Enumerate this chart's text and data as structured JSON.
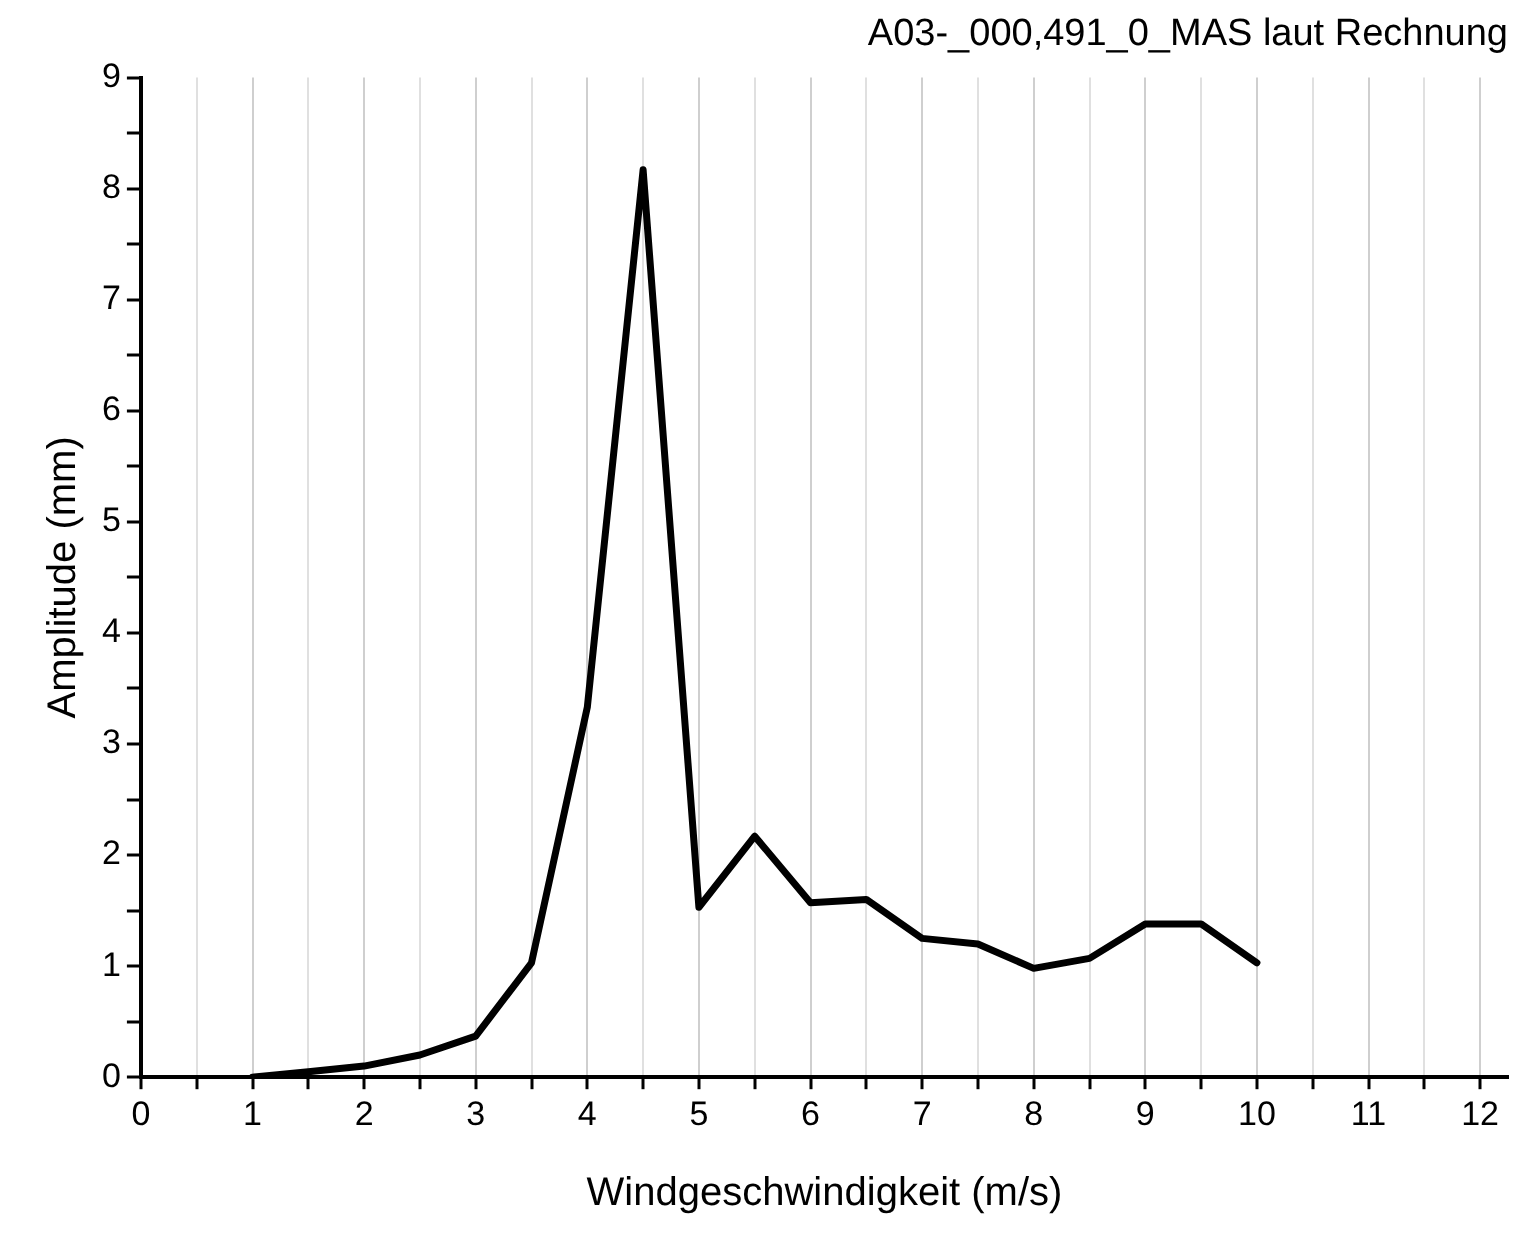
{
  "chart_data": {
    "type": "line",
    "title": "A03-_000,491_0_MAS laut Rechnung",
    "xlabel": "Windgeschwindigkeit (m/s)",
    "ylabel": "Amplitude (mm)",
    "x": [
      1,
      1.5,
      2,
      2.5,
      3,
      3.5,
      4,
      4.5,
      5,
      5.5,
      6,
      6.5,
      7,
      7.5,
      8,
      8.5,
      9,
      9.5,
      10
    ],
    "series": [
      {
        "color": "#000000",
        "values": [
          0,
          0.05,
          0.1,
          0.2,
          0.37,
          1.03,
          3.33,
          8.17,
          1.53,
          2.17,
          1.57,
          1.6,
          1.25,
          1.2,
          0.98,
          1.07,
          1.38,
          1.38,
          1.03
        ]
      }
    ],
    "xlim": [
      0,
      12.25
    ],
    "xticks": [
      0,
      {
        "value": 0.5,
        "label": null
      },
      1,
      {
        "value": 1.5,
        "label": null
      },
      2,
      {
        "value": 2.5,
        "label": null
      },
      3,
      {
        "value": 3.5,
        "label": null
      },
      4,
      {
        "value": 4.5,
        "label": null
      },
      5,
      {
        "value": 5.5,
        "label": null
      },
      6,
      {
        "value": 6.5,
        "label": null
      },
      7,
      {
        "value": 7.5,
        "label": null
      },
      8,
      {
        "value": 8.5,
        "label": null
      },
      9,
      {
        "value": 9.5,
        "label": null
      },
      10,
      {
        "value": 10.5,
        "label": null
      },
      11,
      {
        "value": 11.5,
        "label": null
      },
      12
    ],
    "ylim": [
      0,
      9
    ],
    "yticks": [
      0,
      {
        "value": 0.5,
        "label": null
      },
      1,
      {
        "value": 1.5,
        "label": null
      },
      2,
      {
        "value": 2.5,
        "label": null
      },
      3,
      {
        "value": 3.5,
        "label": null
      },
      4,
      {
        "value": 4.5,
        "label": null
      },
      5,
      {
        "value": 5.5,
        "label": null
      },
      6,
      {
        "value": 6.5,
        "label": null
      },
      7,
      {
        "value": 7.5,
        "label": null
      },
      8,
      {
        "value": 8.5,
        "label": null
      },
      9
    ],
    "grid": "x",
    "legend": false,
    "marker": "none",
    "line_style": "solid"
  }
}
